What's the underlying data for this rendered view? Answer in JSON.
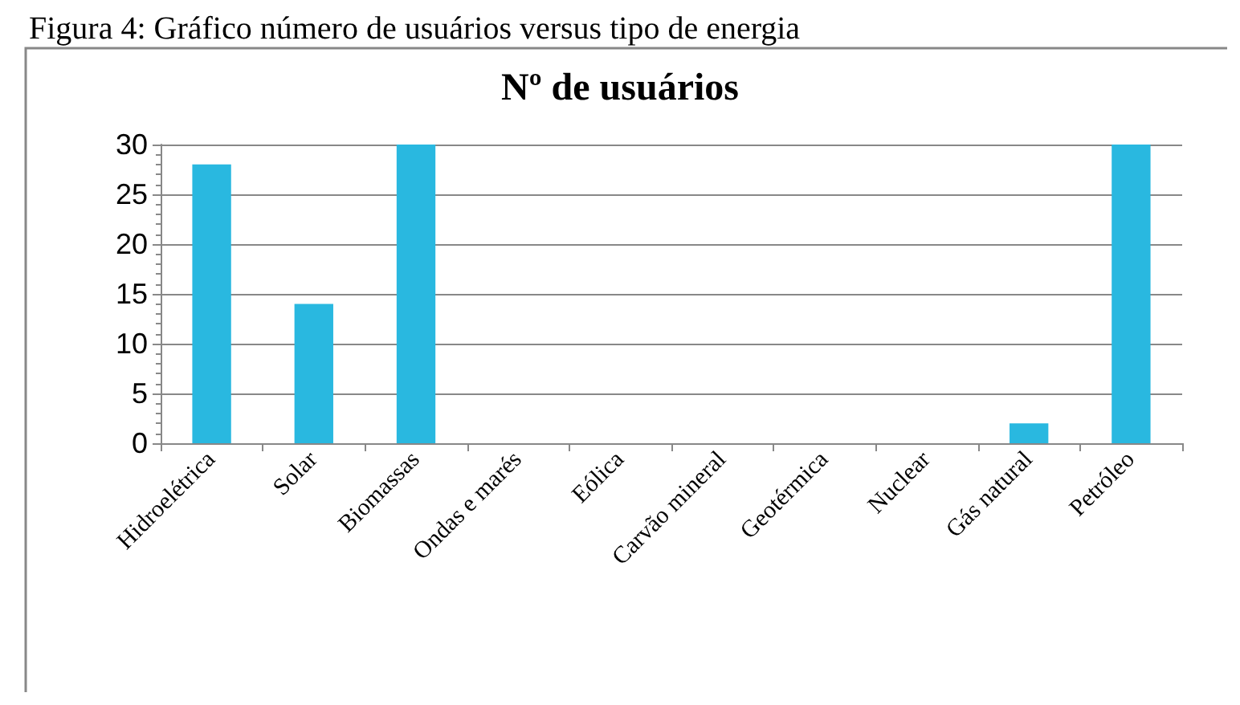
{
  "chart_data": {
    "type": "bar",
    "title": "Nº de usuários",
    "annotations": [
      "Figura 4: Gráfico número de usuários versus tipo de energia"
    ],
    "categories": [
      "Hidroelétrica",
      "Solar",
      "Biomassas",
      "Ondas e marés",
      "Eólica",
      "Carvão mineral",
      "Geotérmica",
      "Nuclear",
      "Gás natural",
      "Petróleo"
    ],
    "values": [
      28,
      14,
      30,
      0,
      0,
      0,
      0,
      0,
      2,
      30
    ],
    "color": "#29b8e0",
    "ylim": [
      0,
      30
    ],
    "yticks": [
      0,
      5,
      10,
      15,
      20,
      25,
      30
    ],
    "grid": "y"
  }
}
